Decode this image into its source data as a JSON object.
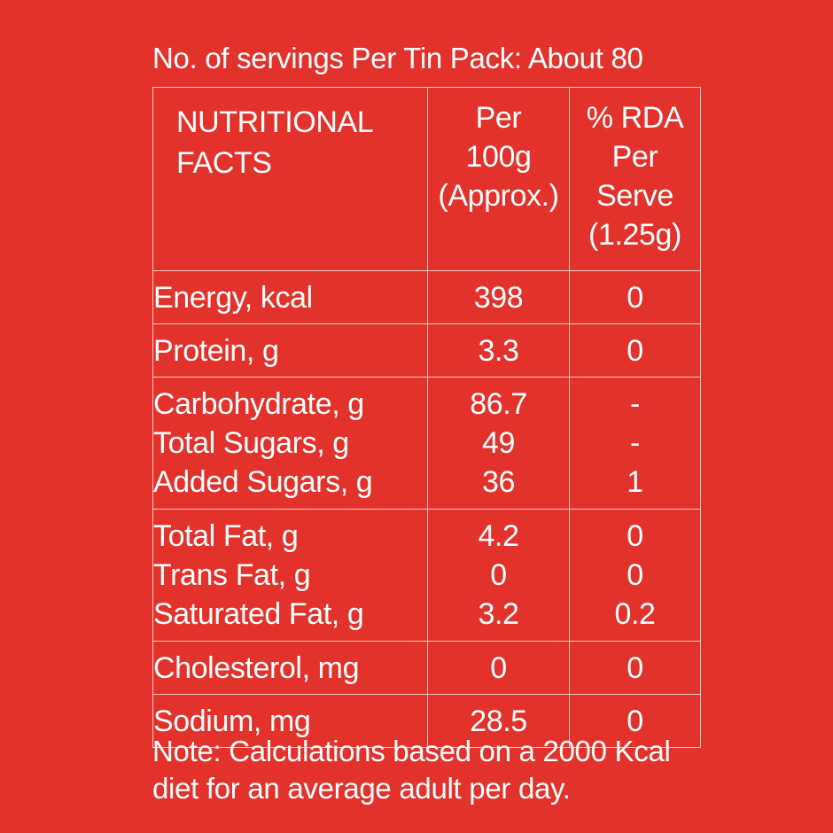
{
  "heading": "No. of servings Per Tin Pack: About 80",
  "columns": {
    "col1": [
      "NUTRITIONAL",
      "FACTS"
    ],
    "col2": [
      "Per",
      "100g",
      "(Approx.)"
    ],
    "col3": [
      "% RDA",
      "Per",
      "Serve",
      "(1.25g)"
    ]
  },
  "rows": [
    {
      "names": [
        "Energy, kcal"
      ],
      "per100g": [
        "398"
      ],
      "rda": [
        "0"
      ]
    },
    {
      "names": [
        "Protein, g"
      ],
      "per100g": [
        "3.3"
      ],
      "rda": [
        "0"
      ]
    },
    {
      "names": [
        "Carbohydrate, g",
        "Total Sugars, g",
        "Added Sugars, g"
      ],
      "per100g": [
        "86.7",
        "49",
        "36"
      ],
      "rda": [
        "-",
        "-",
        "1"
      ]
    },
    {
      "names": [
        "Total Fat, g",
        "Trans Fat, g",
        "Saturated Fat, g"
      ],
      "per100g": [
        "4.2",
        "0",
        "3.2"
      ],
      "rda": [
        "0",
        "0",
        "0.2"
      ]
    },
    {
      "names": [
        "Cholesterol, mg"
      ],
      "per100g": [
        "0"
      ],
      "rda": [
        "0"
      ]
    },
    {
      "names": [
        "Sodium, mg"
      ],
      "per100g": [
        "28.5"
      ],
      "rda": [
        "0"
      ]
    }
  ],
  "note": [
    "Note: Calculations based on a 2000 Kcal",
    "diet for an average adult per day."
  ],
  "colors": {
    "background": "#e2322b",
    "text": "#ffffff",
    "border": "#f6c9c6"
  }
}
